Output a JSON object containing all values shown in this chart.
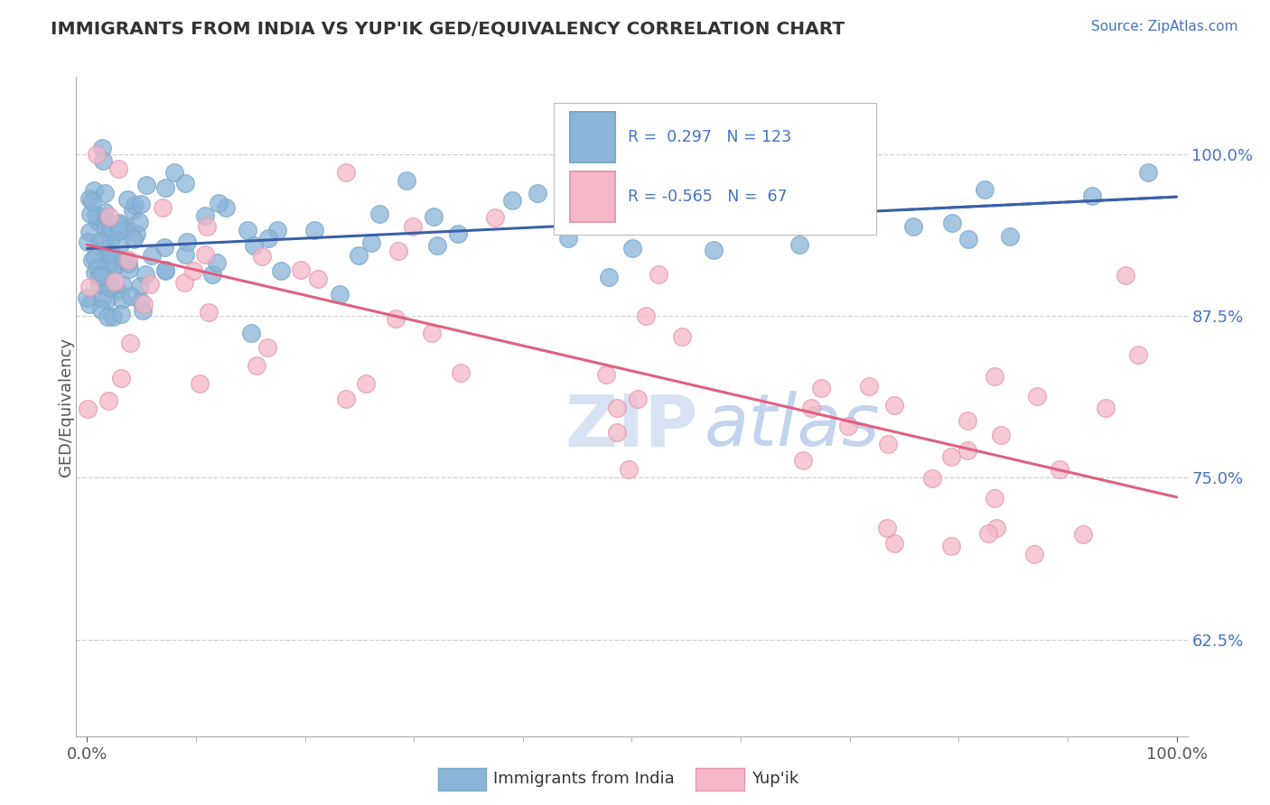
{
  "title": "IMMIGRANTS FROM INDIA VS YUP'IK GED/EQUIVALENCY CORRELATION CHART",
  "source_text": "Source: ZipAtlas.com",
  "ylabel": "GED/Equivalency",
  "y_tick_labels": [
    "62.5%",
    "75.0%",
    "87.5%",
    "100.0%"
  ],
  "y_tick_values": [
    0.625,
    0.75,
    0.875,
    1.0
  ],
  "blue_color": "#8ab4d8",
  "blue_edge": "#7aaac8",
  "pink_color": "#f4b8c8",
  "pink_edge": "#e898b0",
  "trend_blue": "#3a60a8",
  "trend_pink": "#e06080",
  "background": "#ffffff",
  "grid_color": "#d0d0d0",
  "title_color": "#333333",
  "source_color": "#4472c4",
  "ylabel_color": "#555555",
  "tick_color": "#555555",
  "legend_text_color": "#4472c4",
  "watermark_color": "#d0dff0",
  "bottom_legend_color": "#333333"
}
